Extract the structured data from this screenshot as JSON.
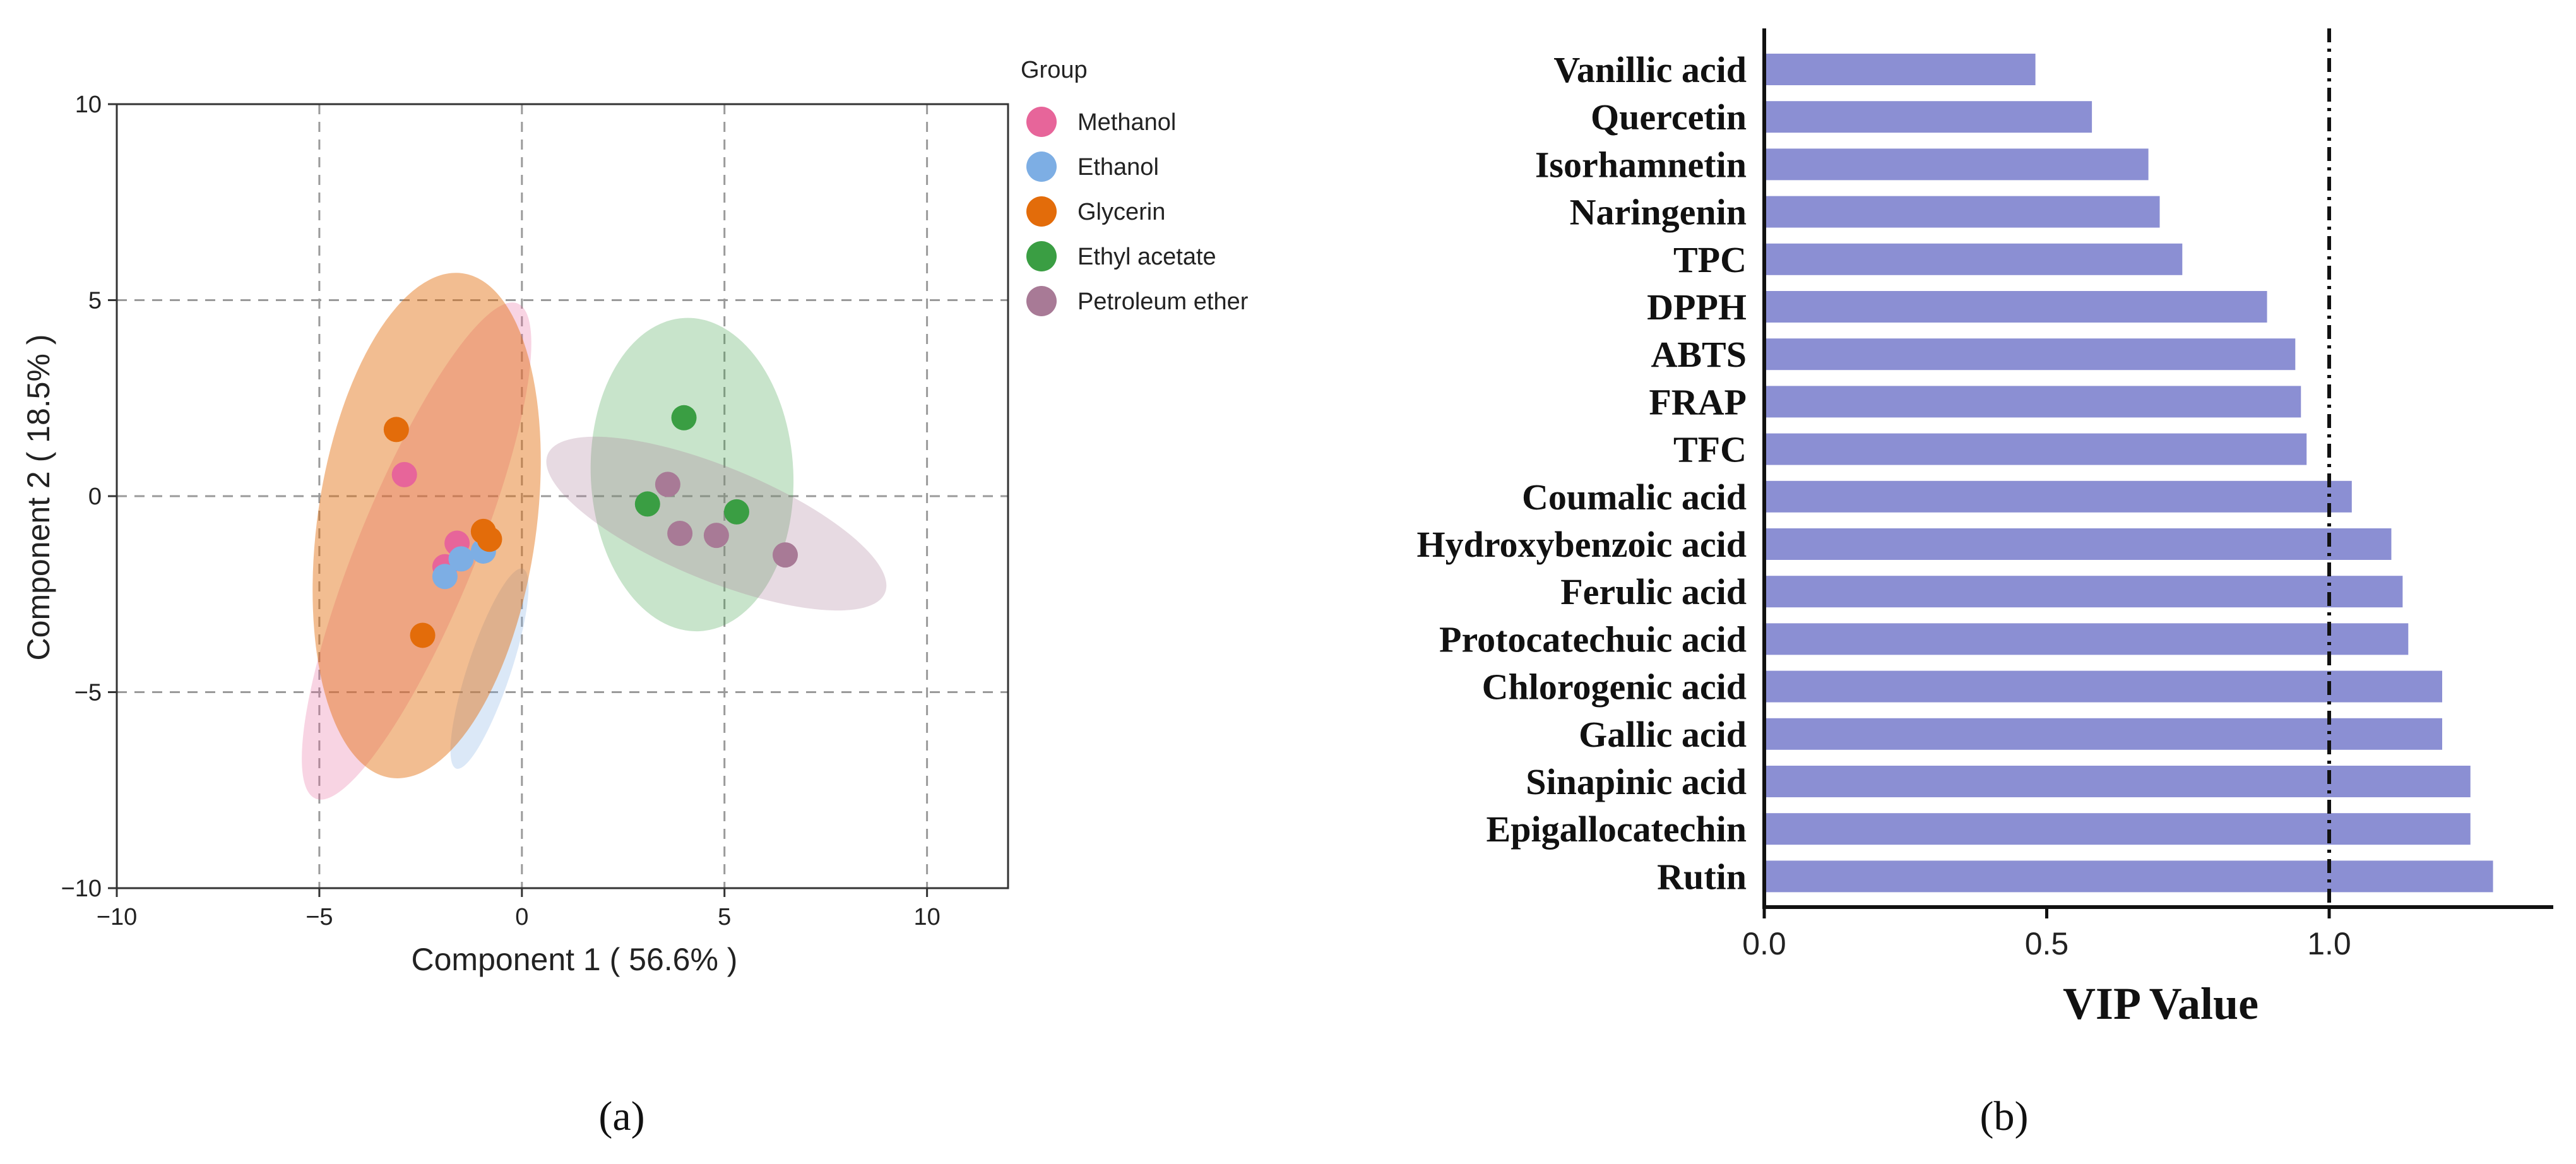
{
  "chart_data": [
    {
      "panel": "(a)",
      "type": "scatter",
      "xlabel": "Component 1 ( 56.6% )",
      "ylabel": "Component 2 ( 18.5% )",
      "xlim": [
        -10,
        12
      ],
      "ylim": [
        -10,
        10
      ],
      "xticks": [
        -10,
        -5,
        0,
        5,
        10
      ],
      "yticks": [
        -10,
        -5,
        0,
        5,
        10
      ],
      "xtick_labels": [
        "−10",
        "−5",
        "0",
        "5",
        "10"
      ],
      "ytick_labels": [
        "−10",
        "−5",
        "0",
        "5",
        "10"
      ],
      "grid": "dashed",
      "legend_title": "Group",
      "legend_position": "right",
      "series": [
        {
          "name": "Methanol",
          "color": "#E7659A",
          "points": [
            [
              -2.9,
              0.55
            ],
            [
              -1.6,
              -1.2
            ],
            [
              -1.9,
              -1.8
            ]
          ],
          "ellipse": {
            "cx": -2.6,
            "cy": -1.4,
            "rx": 6.6,
            "ry": 1.5,
            "angle_deg": -67.8,
            "opacity": 0.28
          }
        },
        {
          "name": "Ethanol",
          "color": "#7DAEE4",
          "points": [
            [
              -1.9,
              -2.05
            ],
            [
              -1.5,
              -1.6
            ],
            [
              -0.95,
              -1.4
            ]
          ],
          "ellipse": {
            "cx": -0.8,
            "cy": -4.4,
            "rx": 2.6,
            "ry": 0.55,
            "angle_deg": -71.6,
            "opacity": 0.28
          }
        },
        {
          "name": "Glycerin",
          "color": "#E36C0A",
          "points": [
            [
              -3.1,
              1.7
            ],
            [
              -0.95,
              -0.9
            ],
            [
              -0.8,
              -1.1
            ],
            [
              -2.45,
              -3.55
            ]
          ],
          "ellipse": {
            "cx": -2.35,
            "cy": -0.75,
            "rx": 2.7,
            "ry": 6.5,
            "angle_deg": 8.1,
            "opacity": 0.45
          }
        },
        {
          "name": "Ethyl acetate",
          "color": "#3A9E43",
          "points": [
            [
              4.0,
              2.0
            ],
            [
              3.1,
              -0.2
            ],
            [
              5.3,
              -0.4
            ]
          ],
          "ellipse": {
            "cx": 4.2,
            "cy": 0.55,
            "rx": 2.5,
            "ry": 4.0,
            "angle_deg": -2.7,
            "opacity": 0.28
          }
        },
        {
          "name": "Petroleum ether",
          "color": "#A87A96",
          "points": [
            [
              3.6,
              0.3
            ],
            [
              3.9,
              -0.95
            ],
            [
              4.8,
              -1.0
            ],
            [
              6.5,
              -1.5
            ]
          ],
          "ellipse": {
            "cx": 4.8,
            "cy": -0.7,
            "rx": 4.5,
            "ry": 1.45,
            "angle_deg": 22.3,
            "opacity": 0.28
          }
        }
      ]
    },
    {
      "panel": "(b)",
      "type": "bar",
      "orientation": "horizontal",
      "xlabel": "VIP Value",
      "xlim": [
        0,
        1.4
      ],
      "xticks": [
        0.0,
        0.5,
        1.0
      ],
      "xtick_labels": [
        "0.0",
        "0.5",
        "1.0"
      ],
      "reference_line": 1.0,
      "bar_color": "#8B8FD3",
      "categories": [
        "Vanillic acid",
        "Quercetin",
        "Isorhamnetin",
        "Naringenin",
        "TPC",
        "DPPH",
        "ABTS",
        "FRAP",
        "TFC",
        "Coumalic acid",
        "Hydroxybenzoic acid",
        "Ferulic acid",
        "Protocatechuic acid",
        "Chlorogenic acid",
        "Gallic acid",
        "Sinapinic acid",
        "Epigallocatechin",
        "Rutin"
      ],
      "values": [
        0.48,
        0.58,
        0.68,
        0.7,
        0.74,
        0.89,
        0.94,
        0.95,
        0.96,
        1.04,
        1.11,
        1.13,
        1.14,
        1.2,
        1.2,
        1.25,
        1.25,
        1.29
      ]
    }
  ],
  "captions": {
    "a": "(a)",
    "b": "(b)"
  }
}
